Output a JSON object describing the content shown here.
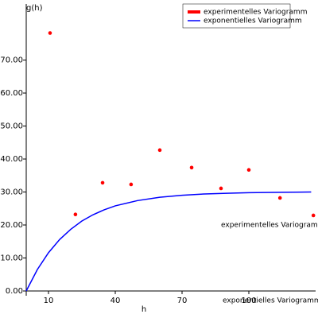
{
  "chart_data": {
    "type": "scatter",
    "y_label": "g(h)",
    "x_label": "h",
    "xlim": [
      0,
      130
    ],
    "ylim": [
      0,
      87
    ],
    "xticks": [
      10,
      40,
      70,
      100
    ],
    "yticks": [
      {
        "value": 0,
        "label": "0.00"
      },
      {
        "value": 10,
        "label": "10.00"
      },
      {
        "value": 20,
        "label": "20.00"
      },
      {
        "value": 30,
        "label": "30.00"
      },
      {
        "value": 40,
        "label": "40.00"
      },
      {
        "value": 50,
        "label": "50.00"
      },
      {
        "value": 60,
        "label": "60.00"
      },
      {
        "value": 70,
        "label": "70.00"
      }
    ],
    "legend": "top-right",
    "series": [
      {
        "name": "experimentelles Variogramm",
        "color": "#ff0000",
        "style": "points",
        "x": [
          10.7,
          22.1,
          34.3,
          47.1,
          60,
          74.3,
          87.5,
          100,
          114,
          129
        ],
        "values": [
          78.2,
          23.2,
          32.8,
          32.3,
          42.7,
          37.4,
          31.1,
          36.7,
          28.2,
          22.9
        ]
      },
      {
        "name": "exponentielles Variogramm",
        "color": "#0000ff",
        "style": "line",
        "x": [
          0,
          5,
          10,
          15,
          20,
          25,
          30,
          35,
          40,
          50,
          60,
          70,
          80,
          90,
          100,
          115,
          128
        ],
        "values": [
          0,
          6.51,
          11.6,
          15.6,
          18.7,
          21.2,
          23.1,
          24.6,
          25.8,
          27.4,
          28.4,
          29.0,
          29.4,
          29.6,
          29.8,
          29.9,
          30.0
        ]
      }
    ],
    "annotations": [
      "experimentelles Variogramm",
      "exponentielles Variogramm"
    ]
  }
}
